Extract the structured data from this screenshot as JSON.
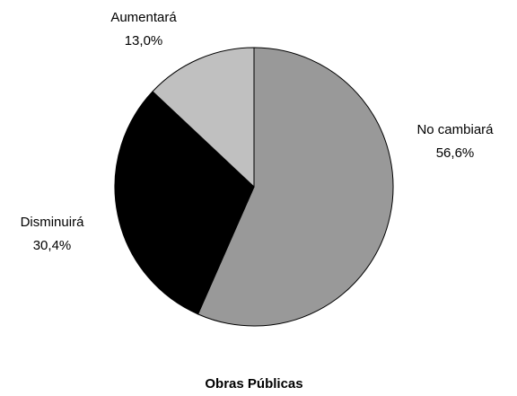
{
  "chart_data": {
    "type": "pie",
    "title": "Obras Públicas",
    "categories": [
      "No cambiará",
      "Disminuirá",
      "Aumentará"
    ],
    "values": [
      56.6,
      30.4,
      13.0
    ],
    "value_labels": [
      "56,6%",
      "30,4%",
      "13,0%"
    ],
    "colors": [
      "#999999",
      "#000000",
      "#c0c0c0"
    ]
  }
}
